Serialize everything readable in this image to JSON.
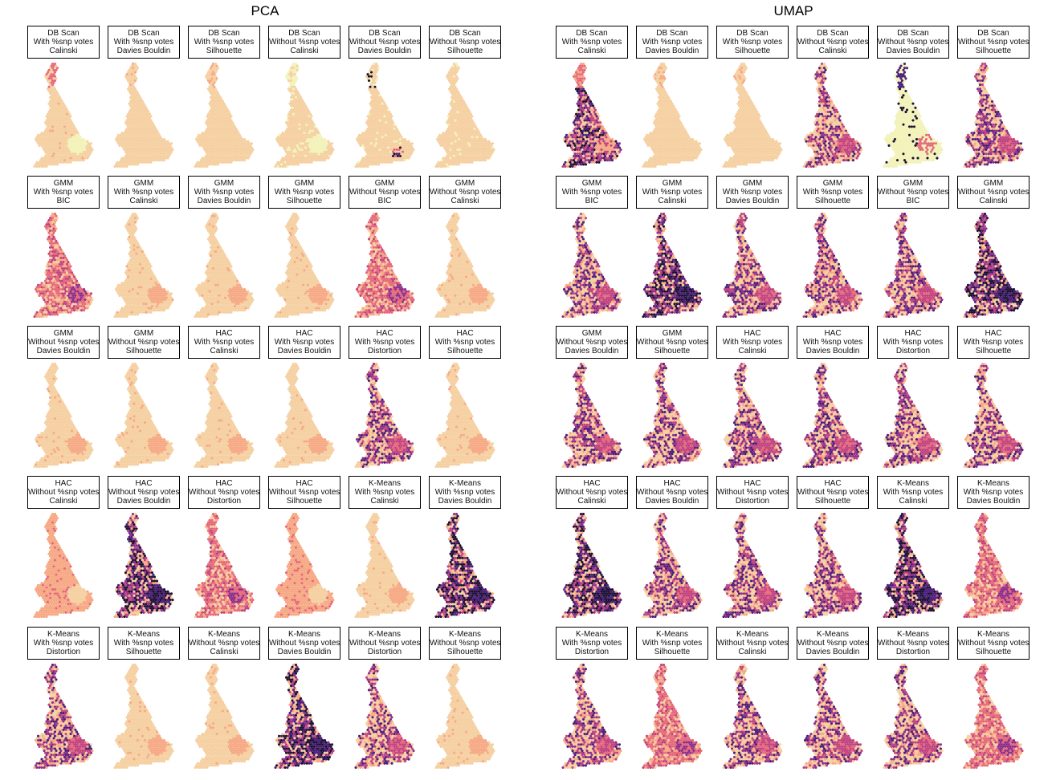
{
  "chart_data": {
    "type": "small-multiple hex maps",
    "columns": [
      {
        "title": "PCA",
        "panels": [
          [
            "DB Scan",
            "With %snp votes",
            "Calinski",
            "pca_dbscan_w_cal"
          ],
          [
            "DB Scan",
            "With %snp votes",
            "Davies Bouldin",
            "plain_a"
          ],
          [
            "DB Scan",
            "With %snp votes",
            "Silhouette",
            "plain_a"
          ],
          [
            "DB Scan",
            "Without %snp votes",
            "Calinski",
            "pca_dbscan_wo_cal"
          ],
          [
            "DB Scan",
            "Without %snp votes",
            "Davies Bouldin",
            "pca_dbscan_wo_db"
          ],
          [
            "DB Scan",
            "Without %snp votes",
            "Silhouette",
            "pca_dbscan_wo_sil"
          ],
          [
            "GMM",
            "With %snp votes",
            "BIC",
            "pink_mixed"
          ],
          [
            "GMM",
            "With %snp votes",
            "Calinski",
            "plain_blob"
          ],
          [
            "GMM",
            "With %snp votes",
            "Davies Bouldin",
            "plain_blob"
          ],
          [
            "GMM",
            "With %snp votes",
            "Silhouette",
            "plain_blob"
          ],
          [
            "GMM",
            "Without %snp votes",
            "BIC",
            "pink_mixed"
          ],
          [
            "GMM",
            "Without %snp votes",
            "Calinski",
            "plain_blob"
          ],
          [
            "GMM",
            "Without %snp votes",
            "Davies Bouldin",
            "plain_blob"
          ],
          [
            "GMM",
            "Without %snp votes",
            "Silhouette",
            "plain_blob"
          ],
          [
            "HAC",
            "With %snp votes",
            "Calinski",
            "plain_blob"
          ],
          [
            "HAC",
            "With %snp votes",
            "Davies Bouldin",
            "plain_blob"
          ],
          [
            "HAC",
            "With %snp votes",
            "Distortion",
            "purple_mixed"
          ],
          [
            "HAC",
            "With %snp votes",
            "Silhouette",
            "plain_blob"
          ],
          [
            "HAC",
            "Without %snp votes",
            "Calinski",
            "salmon_blob"
          ],
          [
            "HAC",
            "Without %snp votes",
            "Davies Bouldin",
            "dark_mixed"
          ],
          [
            "HAC",
            "Without %snp votes",
            "Distortion",
            "pink_mixed"
          ],
          [
            "HAC",
            "Without %snp votes",
            "Silhouette",
            "salmon_blob"
          ],
          [
            "K-Means",
            "With %snp votes",
            "Calinski",
            "plain_blob"
          ],
          [
            "K-Means",
            "With %snp votes",
            "Davies Bouldin",
            "dark_mixed"
          ],
          [
            "K-Means",
            "With %snp votes",
            "Distortion",
            "purple_mixed"
          ],
          [
            "K-Means",
            "With %snp votes",
            "Silhouette",
            "plain_blob"
          ],
          [
            "K-Means",
            "Without %snp votes",
            "Calinski",
            "plain_blob"
          ],
          [
            "K-Means",
            "Without %snp votes",
            "Davies Bouldin",
            "dark_mixed"
          ],
          [
            "K-Means",
            "Without %snp votes",
            "Distortion",
            "purple_mixed"
          ],
          [
            "K-Means",
            "Without %snp votes",
            "Silhouette",
            "plain_blob"
          ]
        ]
      },
      {
        "title": "UMAP",
        "panels": [
          [
            "DB Scan",
            "With %snp votes",
            "Calinski",
            "umap_dbscan_w_cal"
          ],
          [
            "DB Scan",
            "With %snp votes",
            "Davies Bouldin",
            "plain_a"
          ],
          [
            "DB Scan",
            "With %snp votes",
            "Silhouette",
            "plain_a"
          ],
          [
            "DB Scan",
            "Without %snp votes",
            "Calinski",
            "purple_mixed"
          ],
          [
            "DB Scan",
            "Without %snp votes",
            "Davies Bouldin",
            "umap_dbscan_wo_db"
          ],
          [
            "DB Scan",
            "Without %snp votes",
            "Silhouette",
            "purple_mixed"
          ],
          [
            "GMM",
            "With %snp votes",
            "BIC",
            "purple_mixed"
          ],
          [
            "GMM",
            "With %snp votes",
            "Calinski",
            "dark_mixed"
          ],
          [
            "GMM",
            "With %snp votes",
            "Davies Bouldin",
            "purple_mixed"
          ],
          [
            "GMM",
            "With %snp votes",
            "Silhouette",
            "purple_mixed"
          ],
          [
            "GMM",
            "Without %snp votes",
            "BIC",
            "purple_mixed"
          ],
          [
            "GMM",
            "Without %snp votes",
            "Calinski",
            "dark_mixed"
          ],
          [
            "GMM",
            "Without %snp votes",
            "Davies Bouldin",
            "purple_mixed"
          ],
          [
            "GMM",
            "Without %snp votes",
            "Silhouette",
            "purple_mixed"
          ],
          [
            "HAC",
            "With %snp votes",
            "Calinski",
            "purple_mixed"
          ],
          [
            "HAC",
            "With %snp votes",
            "Davies Bouldin",
            "purple_mixed"
          ],
          [
            "HAC",
            "With %snp votes",
            "Distortion",
            "purple_mixed"
          ],
          [
            "HAC",
            "With %snp votes",
            "Silhouette",
            "purple_mixed"
          ],
          [
            "HAC",
            "Without %snp votes",
            "Calinski",
            "dark_mixed"
          ],
          [
            "HAC",
            "Without %snp votes",
            "Davies Bouldin",
            "purple_mixed"
          ],
          [
            "HAC",
            "Without %snp votes",
            "Distortion",
            "purple_mixed"
          ],
          [
            "HAC",
            "Without %snp votes",
            "Silhouette",
            "purple_mixed"
          ],
          [
            "K-Means",
            "With %snp votes",
            "Calinski",
            "dark_mixed"
          ],
          [
            "K-Means",
            "With %snp votes",
            "Davies Bouldin",
            "pink_mixed"
          ],
          [
            "K-Means",
            "With %snp votes",
            "Distortion",
            "purple_mixed"
          ],
          [
            "K-Means",
            "With %snp votes",
            "Silhouette",
            "pink_mixed"
          ],
          [
            "K-Means",
            "Without %snp votes",
            "Calinski",
            "purple_mixed"
          ],
          [
            "K-Means",
            "Without %snp votes",
            "Davies Bouldin",
            "purple_mixed"
          ],
          [
            "K-Means",
            "Without %snp votes",
            "Distortion",
            "purple_mixed"
          ],
          [
            "K-Means",
            "Without %snp votes",
            "Silhouette",
            "pink_mixed"
          ]
        ]
      }
    ],
    "palette": [
      "#f5cfa0",
      "#f6a883",
      "#e6687a",
      "#c0437f",
      "#8c2e8a",
      "#4b1d78",
      "#1b1032",
      "#f2f2b8",
      "#fbe7b5"
    ]
  }
}
